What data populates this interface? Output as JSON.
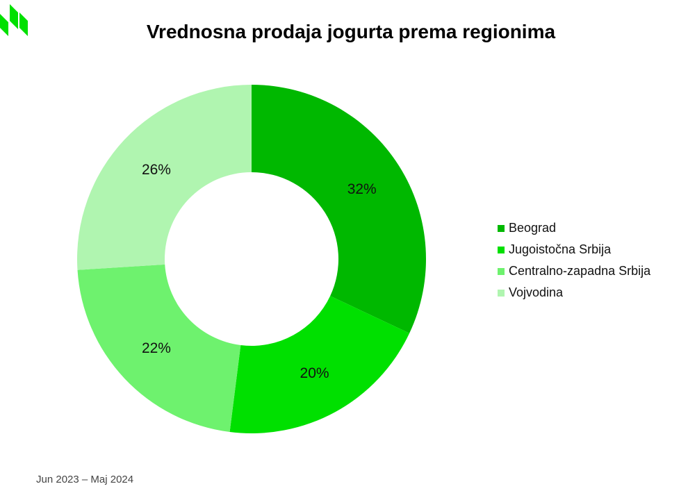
{
  "title": "Vrednosna prodaja jogurta prema regionima",
  "footer": "Jun 2023 – Maj 2024",
  "logo": {
    "icon": "brand-logo-icon",
    "color": "#00e000"
  },
  "chart_data": {
    "type": "pie",
    "donut": true,
    "title": "Vrednosna prodaja jogurta prema regionima",
    "categories": [
      "Beograd",
      "Jugoistočna Srbija",
      "Centralno-zapadna Srbija",
      "Vojvodina"
    ],
    "values": [
      32,
      20,
      22,
      26
    ],
    "labels": [
      "32%",
      "20%",
      "22%",
      "26%"
    ],
    "colors": [
      "#00b800",
      "#00e000",
      "#6ef26e",
      "#b0f5b0"
    ],
    "start": "top, clockwise",
    "legend_position": "right"
  }
}
